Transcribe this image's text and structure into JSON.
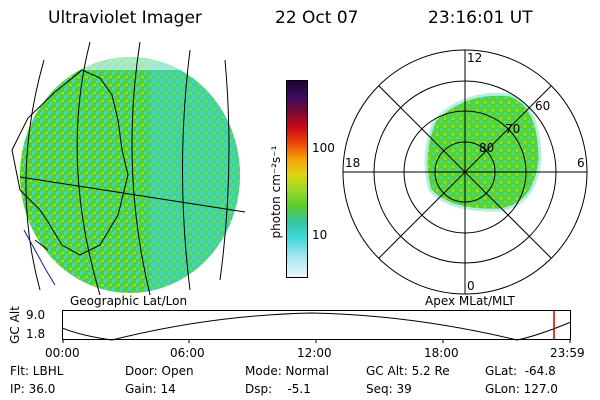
{
  "header": {
    "title": "Ultraviolet Imager",
    "date": "22 Oct 07",
    "time": "23:16:01 UT"
  },
  "colorbar": {
    "label": "photon cm⁻²s⁻¹",
    "ticks": [
      "100",
      "10"
    ]
  },
  "left_panel": {
    "caption": "Geographic Lat/Lon"
  },
  "right_panel": {
    "caption": "Apex MLat/MLT",
    "mlt_labels": [
      "12",
      "18",
      "6",
      "0"
    ],
    "lat_labels": [
      "60",
      "70",
      "80"
    ]
  },
  "timeline": {
    "ylabel": "GC Alt",
    "yticks": [
      "9.0",
      "1.8"
    ],
    "xticks": [
      "00:00",
      "06:00",
      "12:00",
      "18:00",
      "23:59"
    ]
  },
  "status": {
    "flt": "Flt: LBHL",
    "ip": "IP: 36.0",
    "door": "Door: Open",
    "gain": "Gain: 14",
    "mode": "Mode: Normal",
    "dsp": "Dsp:    -5.1",
    "gc_alt": "GC Alt: 5.2 Re",
    "seq": "Seq: 39",
    "glat": "GLat:  -64.8",
    "glon": "GLon: 127.0"
  },
  "colors": {
    "aurora_green": "#58d42a",
    "aurora_cyan": "#3fd8d0",
    "marker_red": "#cc0000"
  }
}
